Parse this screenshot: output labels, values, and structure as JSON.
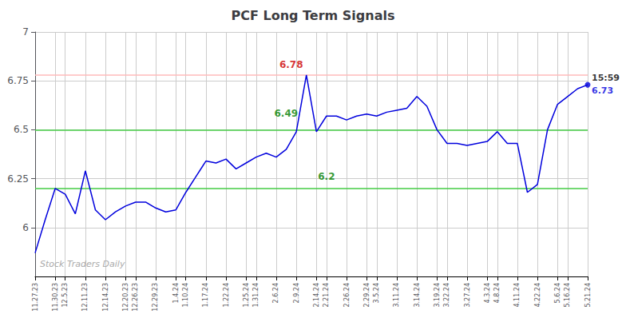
{
  "chart_data": {
    "type": "line",
    "title": "PCF Long Term Signals",
    "watermark": "Stock Traders Daily",
    "categories": [
      "11.27.23",
      null,
      "11.30.23",
      "12.5.23",
      null,
      "12.11.23",
      null,
      "12.14.23",
      null,
      "12.20.23",
      "12.26.23",
      null,
      "12.29.23",
      null,
      "1.4.24",
      "1.10.24",
      null,
      "1.17.24",
      null,
      "1.22.24",
      null,
      "1.25.24",
      "1.31.24",
      null,
      "2.6.24",
      null,
      "2.9.24",
      null,
      "2.14.24",
      "2.21.24",
      null,
      "2.26.24",
      null,
      "2.29.24",
      "3.5.24",
      null,
      "3.11.24",
      null,
      "3.14.24",
      null,
      "3.19.24",
      "3.22.24",
      null,
      "3.27.24",
      null,
      "4.3.24",
      "4.8.24",
      null,
      "4.11.24",
      null,
      "4.22.24",
      null,
      "5.6.24",
      "5.16.24",
      null,
      "5.21.24"
    ],
    "values": [
      5.87,
      6.04,
      6.2,
      6.17,
      6.07,
      6.29,
      6.09,
      6.04,
      6.08,
      6.11,
      6.13,
      6.13,
      6.1,
      6.08,
      6.09,
      6.18,
      6.26,
      6.34,
      6.33,
      6.35,
      6.3,
      6.33,
      6.36,
      6.38,
      6.36,
      6.4,
      6.49,
      6.78,
      6.49,
      6.57,
      6.57,
      6.55,
      6.57,
      6.58,
      6.57,
      6.59,
      6.6,
      6.61,
      6.67,
      6.62,
      6.5,
      6.43,
      6.43,
      6.42,
      6.43,
      6.44,
      6.49,
      6.43,
      6.43,
      6.18,
      6.22,
      6.5,
      6.63,
      6.67,
      6.71,
      6.73
    ],
    "color": "#0000dd",
    "marker": "circle",
    "marker_index": 55,
    "ylim": [
      5.75,
      7.0
    ],
    "yticks": [
      6,
      6.25,
      6.5,
      6.75,
      7
    ],
    "grid": true,
    "hlines": [
      {
        "value": 6.775,
        "color": "#ffbbbb"
      },
      {
        "value": 6.5,
        "color": "#44cc44"
      },
      {
        "value": 6.2,
        "color": "#44cc44"
      }
    ],
    "annotations": [
      {
        "text": "6.78",
        "color": "#cc0000",
        "index": 27,
        "value": 6.78
      },
      {
        "text": "6.49",
        "color": "green",
        "index": 28,
        "value": 6.49
      },
      {
        "text": "6.2",
        "color": "green",
        "index": 29,
        "value": 6.2
      },
      {
        "text": "15:59",
        "color": "#000000",
        "index": 55,
        "value": 6.73
      },
      {
        "text": "6.73",
        "color": "#0000dd",
        "index": 55,
        "value": 6.73
      }
    ]
  }
}
